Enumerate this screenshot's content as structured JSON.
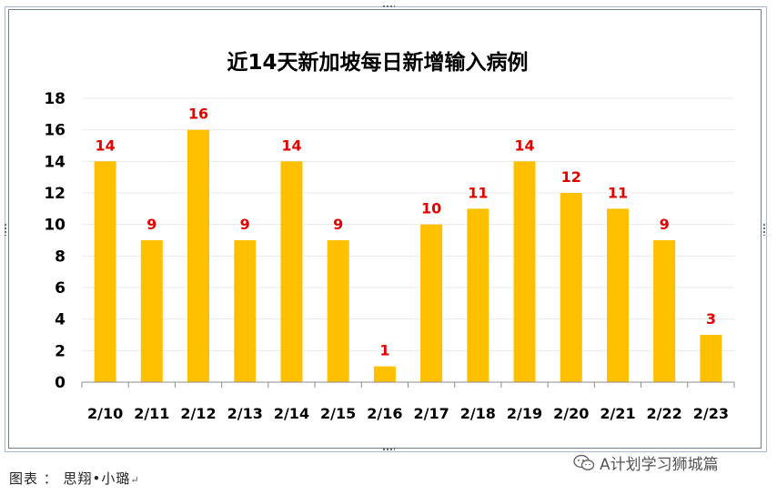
{
  "caption": {
    "label": "图表 ： 思翔•小璐",
    "return_mark": "↵"
  },
  "watermark": {
    "text": "A计划学习狮城篇",
    "icon": "wechat-icon"
  },
  "colors": {
    "bar": "#FFC000",
    "data_label": "#E00000",
    "grid": "#E8E8E8",
    "axis": "#8C8C8C",
    "text": "#000000"
  },
  "chart_data": {
    "type": "bar",
    "title": "近14天新加坡每日新增输入病例",
    "xlabel": "",
    "ylabel": "",
    "categories": [
      "2/10",
      "2/11",
      "2/12",
      "2/13",
      "2/14",
      "2/15",
      "2/16",
      "2/17",
      "2/18",
      "2/19",
      "2/20",
      "2/21",
      "2/22",
      "2/23"
    ],
    "values": [
      14,
      9,
      16,
      9,
      14,
      9,
      1,
      10,
      11,
      14,
      12,
      11,
      9,
      3
    ],
    "ylim": [
      0,
      18
    ],
    "yticks": [
      0,
      2,
      4,
      6,
      8,
      10,
      12,
      14,
      16,
      18
    ],
    "grid": true,
    "legend": "none",
    "data_labels": true
  }
}
